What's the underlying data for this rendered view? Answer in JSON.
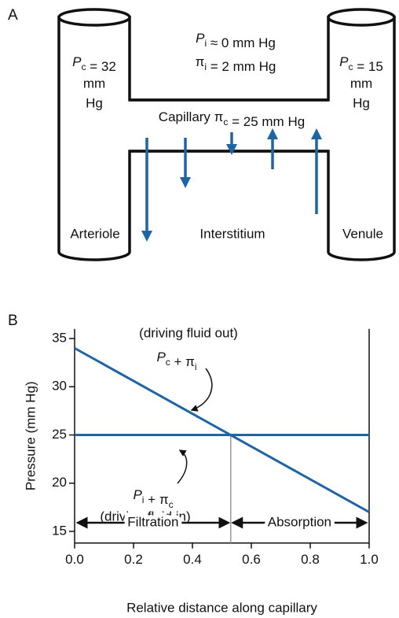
{
  "diagram": {
    "panel": "A",
    "top": [
      [
        {
          "t": "P",
          "i": true,
          "s": "i"
        },
        {
          "t": " ≈ 0 mm Hg"
        }
      ],
      [
        {
          "t": "π",
          "s": "i"
        },
        {
          "t": " = 2 mm Hg"
        }
      ]
    ],
    "capillary": [
      {
        "t": "Capillary π",
        "s": "c"
      },
      {
        "t": " = 25 mm Hg"
      }
    ],
    "left": {
      "pressure": [
        {
          "t": "P",
          "i": true,
          "s": "c"
        },
        {
          "t": " = 32"
        }
      ],
      "line2": "mm",
      "line3": "Hg",
      "name": "Arteriole"
    },
    "right": {
      "pressure": [
        {
          "t": "P",
          "i": true,
          "s": "c"
        },
        {
          "t": " = 15"
        }
      ],
      "line2": "mm",
      "line3": "Hg",
      "name": "Venule"
    },
    "interstitium": "Interstitium"
  },
  "chart_data": {
    "type": "line",
    "panel": "B",
    "xlabel": "Relative distance along capillary",
    "ylabel": "Pressure (mm Hg)",
    "x": [
      0,
      1
    ],
    "xlim": [
      0,
      1
    ],
    "ylim": [
      13.8,
      36
    ],
    "xticks": [
      {
        "value": 0,
        "label": "0.0"
      },
      0.2,
      0.4,
      0.6,
      0.8,
      {
        "value": 1,
        "label": "1.0"
      }
    ],
    "yticks": [
      15,
      20,
      25,
      30,
      35
    ],
    "series": [
      {
        "label": [
          {
            "t": "P",
            "i": true,
            "s": "c"
          },
          {
            "t": " + π",
            "s": "i"
          }
        ],
        "note": "(driving fluid out)",
        "color": "#1f64a3",
        "values": [
          34,
          17
        ]
      },
      {
        "label": [
          {
            "t": "P",
            "i": true,
            "s": "i"
          },
          {
            "t": " + π",
            "s": "c"
          }
        ],
        "note": "(driving fluid in)",
        "color": "#1f64a3",
        "values": [
          25,
          25
        ]
      }
    ],
    "vline": {
      "x": 0.53,
      "color": "#999999"
    },
    "regions": [
      "Filtration",
      "Absorption"
    ]
  }
}
